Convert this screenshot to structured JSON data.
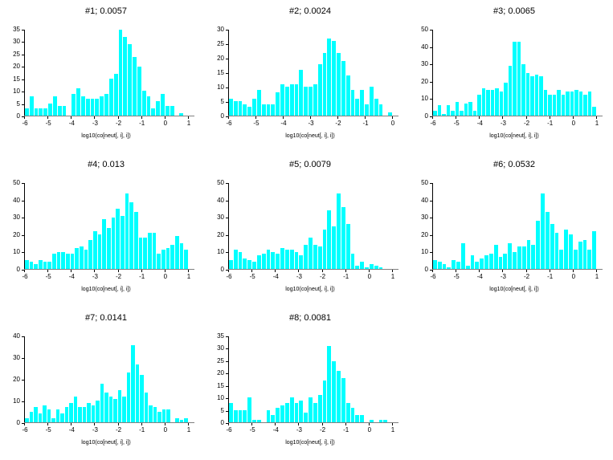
{
  "figure": {
    "background": "#ffffff",
    "bar_color": "#00ffff",
    "axis_color": "#000000",
    "baseline_color": "#808080",
    "grid_columns": 3,
    "grid_rows": 3
  },
  "chart_data": [
    {
      "type": "bar",
      "title": "#1; 0.0057",
      "xlabel": "log10(co[neut[, i], i])",
      "xlim": [
        -6,
        1
      ],
      "ylim": [
        0,
        35
      ],
      "ytick_step": 5,
      "xticks": [
        -6,
        -5,
        -4,
        -3,
        -2,
        -1,
        0,
        1
      ],
      "yticks": [
        0,
        5,
        10,
        15,
        20,
        25,
        30,
        35
      ],
      "values": [
        3,
        8,
        3,
        3,
        3,
        5,
        8,
        4,
        4,
        0,
        9,
        11,
        8,
        7,
        7,
        7,
        8,
        9,
        15,
        17,
        35,
        32,
        29,
        24,
        20,
        10,
        8,
        3,
        6,
        9,
        4,
        4,
        0,
        1,
        0
      ]
    },
    {
      "type": "bar",
      "title": "#2; 0.0024",
      "xlabel": "log10(co[neut[, i], i])",
      "xlim": [
        -6,
        0
      ],
      "ylim": [
        0,
        30
      ],
      "ytick_step": 5,
      "xticks": [
        -6,
        -5,
        -4,
        -3,
        -2,
        -1,
        0
      ],
      "yticks": [
        0,
        5,
        10,
        15,
        20,
        25,
        30
      ],
      "values": [
        6,
        5,
        5,
        4,
        3,
        6,
        9,
        4,
        4,
        4,
        8,
        11,
        10,
        11,
        11,
        16,
        10,
        10,
        11,
        18,
        22,
        27,
        26,
        22,
        19,
        14,
        9,
        6,
        9,
        4,
        10,
        6,
        4,
        0,
        1
      ]
    },
    {
      "type": "bar",
      "title": "#3; 0.0065",
      "xlabel": "log10(co[neut[, i], i])",
      "xlim": [
        -6,
        1
      ],
      "ylim": [
        0,
        50
      ],
      "ytick_step": 10,
      "xticks": [
        -6,
        -5,
        -4,
        -3,
        -2,
        -1,
        0,
        1
      ],
      "yticks": [
        0,
        10,
        20,
        30,
        40,
        50
      ],
      "values": [
        3,
        6,
        1,
        6,
        3,
        8,
        3,
        7,
        8,
        3,
        12,
        16,
        15,
        15,
        16,
        14,
        19,
        29,
        43,
        43,
        30,
        25,
        23,
        24,
        23,
        15,
        12,
        12,
        15,
        12,
        14,
        14,
        15,
        14,
        12,
        14,
        5
      ]
    },
    {
      "type": "bar",
      "title": "#4; 0.013",
      "xlabel": "log10(co[neut[, i], i])",
      "xlim": [
        -6,
        1
      ],
      "ylim": [
        0,
        50
      ],
      "ytick_step": 10,
      "xticks": [
        -6,
        -5,
        -4,
        -3,
        -2,
        -1,
        0,
        1
      ],
      "yticks": [
        0,
        10,
        20,
        30,
        40,
        50
      ],
      "values": [
        5,
        4,
        3,
        5,
        4,
        4,
        9,
        10,
        10,
        9,
        9,
        12,
        13,
        11,
        17,
        22,
        20,
        29,
        24,
        30,
        35,
        31,
        44,
        39,
        33,
        18,
        18,
        21,
        21,
        9,
        11,
        12,
        14,
        19,
        15,
        11
      ]
    },
    {
      "type": "bar",
      "title": "#5; 0.0079",
      "xlabel": "log10(co[neut[, i], i])",
      "xlim": [
        -6,
        1
      ],
      "ylim": [
        0,
        50
      ],
      "ytick_step": 10,
      "xticks": [
        -6,
        -5,
        -4,
        -3,
        -2,
        -1,
        0,
        1
      ],
      "yticks": [
        0,
        10,
        20,
        30,
        40,
        50
      ],
      "values": [
        5,
        11,
        10,
        6,
        5,
        4,
        8,
        9,
        11,
        10,
        9,
        12,
        11,
        11,
        10,
        8,
        14,
        18,
        14,
        13,
        23,
        34,
        25,
        44,
        36,
        26,
        9,
        2,
        4,
        1,
        3,
        2,
        1,
        0,
        0
      ]
    },
    {
      "type": "bar",
      "title": "#6; 0.0532",
      "xlabel": "log10(co[neut[, i], i])",
      "xlim": [
        -6,
        1
      ],
      "ylim": [
        0,
        50
      ],
      "ytick_step": 10,
      "xticks": [
        -6,
        -5,
        -4,
        -3,
        -2,
        -1,
        0,
        1
      ],
      "yticks": [
        0,
        10,
        20,
        30,
        40,
        50
      ],
      "values": [
        5,
        4,
        3,
        1,
        5,
        4,
        15,
        2,
        8,
        4,
        6,
        8,
        9,
        14,
        7,
        9,
        15,
        10,
        13,
        13,
        17,
        14,
        28,
        44,
        33,
        26,
        21,
        11,
        23,
        20,
        11,
        16,
        17,
        11,
        22
      ]
    },
    {
      "type": "bar",
      "title": "#7; 0.0141",
      "xlabel": "log10(co[neut[, i], i])",
      "xlim": [
        -6,
        1
      ],
      "ylim": [
        0,
        40
      ],
      "ytick_step": 10,
      "xticks": [
        -6,
        -5,
        -4,
        -3,
        -2,
        -1,
        0,
        1
      ],
      "yticks": [
        0,
        10,
        20,
        30,
        40
      ],
      "values": [
        2,
        5,
        7,
        4,
        8,
        6,
        2,
        6,
        4,
        7,
        9,
        12,
        7,
        7,
        9,
        8,
        10,
        18,
        14,
        12,
        11,
        15,
        12,
        23,
        36,
        27,
        22,
        14,
        8,
        7,
        5,
        6,
        6,
        0,
        2,
        1,
        2
      ]
    },
    {
      "type": "bar",
      "title": "#8; 0.0081",
      "xlabel": "log10(co[neut[, i], i])",
      "xlim": [
        -6,
        1
      ],
      "ylim": [
        0,
        35
      ],
      "ytick_step": 5,
      "xticks": [
        -6,
        -5,
        -4,
        -3,
        -2,
        -1,
        0,
        1
      ],
      "yticks": [
        0,
        5,
        10,
        15,
        20,
        25,
        30,
        35
      ],
      "values": [
        8,
        5,
        5,
        5,
        10,
        1,
        1,
        0,
        5,
        3,
        6,
        7,
        8,
        10,
        8,
        9,
        4,
        10,
        8,
        11,
        17,
        31,
        25,
        21,
        18,
        8,
        6,
        3,
        3,
        0,
        1,
        0,
        1,
        1,
        0
      ]
    }
  ]
}
